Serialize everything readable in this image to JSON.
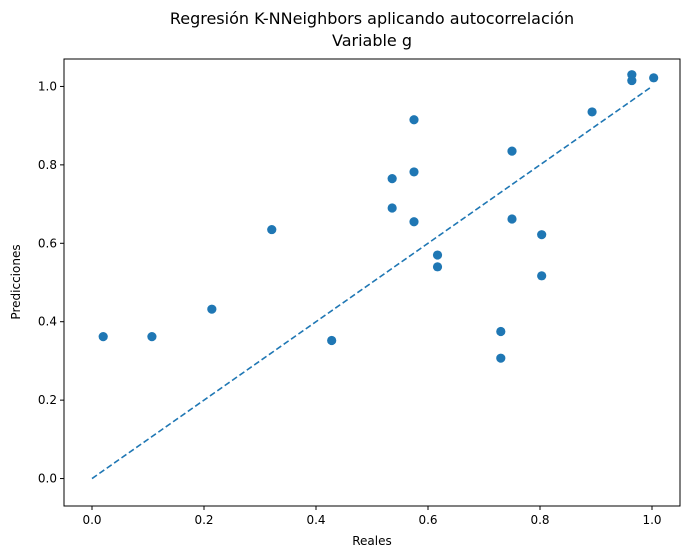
{
  "chart_data": {
    "type": "scatter",
    "title": "Regresión K-NNeighbors aplicando autocorrelación",
    "subtitle": "Variable g",
    "xlabel": "Reales",
    "ylabel": "Predicciones",
    "xlim": [
      -0.05,
      1.05
    ],
    "ylim": [
      -0.07,
      1.07
    ],
    "x_ticks": [
      "0.0",
      "0.2",
      "0.4",
      "0.6",
      "0.8",
      "1.0"
    ],
    "y_ticks": [
      "0.0",
      "0.2",
      "0.4",
      "0.6",
      "0.8",
      "1.0"
    ],
    "grid": false,
    "point_color": "#1f77b4",
    "line_color": "#1f77b4",
    "points": [
      {
        "x": 0.02,
        "y": 0.362
      },
      {
        "x": 0.107,
        "y": 0.362
      },
      {
        "x": 0.214,
        "y": 0.432
      },
      {
        "x": 0.321,
        "y": 0.635
      },
      {
        "x": 0.428,
        "y": 0.352
      },
      {
        "x": 0.536,
        "y": 0.765
      },
      {
        "x": 0.536,
        "y": 0.69
      },
      {
        "x": 0.575,
        "y": 0.915
      },
      {
        "x": 0.575,
        "y": 0.782
      },
      {
        "x": 0.575,
        "y": 0.655
      },
      {
        "x": 0.617,
        "y": 0.57
      },
      {
        "x": 0.617,
        "y": 0.54
      },
      {
        "x": 0.73,
        "y": 0.375
      },
      {
        "x": 0.73,
        "y": 0.307
      },
      {
        "x": 0.75,
        "y": 0.835
      },
      {
        "x": 0.75,
        "y": 0.662
      },
      {
        "x": 0.803,
        "y": 0.622
      },
      {
        "x": 0.803,
        "y": 0.517
      },
      {
        "x": 0.893,
        "y": 0.935
      },
      {
        "x": 0.964,
        "y": 1.03
      },
      {
        "x": 0.964,
        "y": 1.015
      },
      {
        "x": 1.003,
        "y": 1.022
      }
    ],
    "reference_line": {
      "x": [
        0.0,
        1.0
      ],
      "y": [
        0.0,
        1.0
      ],
      "style": "dashed"
    }
  }
}
